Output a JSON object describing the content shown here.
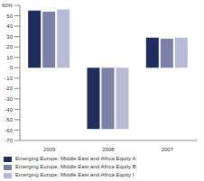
{
  "chart_data": {
    "type": "bar",
    "categories": [
      "2009",
      "2008",
      "2007"
    ],
    "series": [
      {
        "name": "Emerging Europe, Middle East and Africa Equity A",
        "color": "#1f2c5c",
        "values": [
          55,
          -59,
          29
        ]
      },
      {
        "name": "Emerging Europe, Middle East and Africa Equity B",
        "color": "#7b80a6",
        "values": [
          54,
          -59,
          28
        ]
      },
      {
        "name": "Emerging Europe, Middle East and Africa Equity I",
        "color": "#b9bad6",
        "values": [
          56,
          -59,
          29
        ]
      }
    ],
    "ylim": [
      -70,
      60
    ],
    "yticks": [
      {
        "value": 60,
        "label": "60%"
      },
      50,
      40,
      30,
      20,
      10,
      0,
      -10,
      -20,
      -30,
      -40,
      -50,
      -60,
      -70
    ],
    "grid": false
  }
}
